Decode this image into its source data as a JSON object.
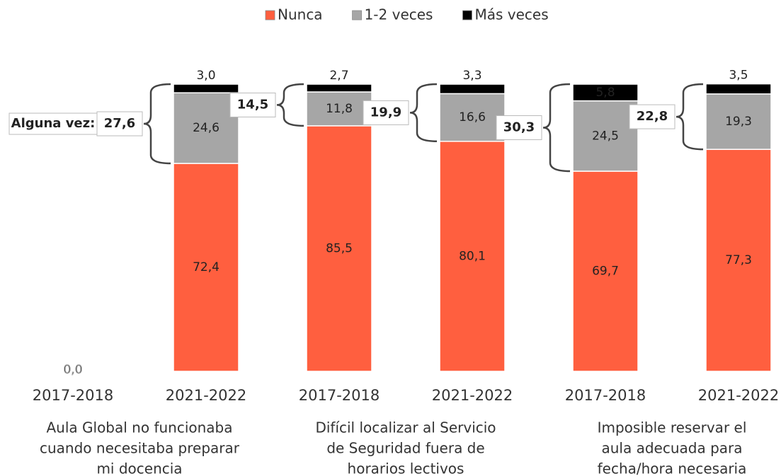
{
  "chart_data": {
    "type": "stacked-bar",
    "categories": [
      "2017-2018",
      "2021-2022",
      "2017-2018",
      "2021-2022",
      "2017-2018",
      "2021-2022"
    ],
    "groups": [
      {
        "label": [
          "Aula Global no funcionaba",
          "cuando necesitaba preparar",
          "mi docencia"
        ]
      },
      {
        "label": [
          "Difícil localizar al Servicio",
          "de Seguridad fuera de",
          "horarios lectivos"
        ]
      },
      {
        "label": [
          "Imposible reservar el",
          "aula adecuada para",
          "fecha/hora necesaria"
        ]
      }
    ],
    "series": [
      {
        "name": "Nunca",
        "color": "#ff5f3f",
        "values": [
          0,
          72.4,
          85.5,
          80.1,
          69.7,
          77.3
        ],
        "value_labels": [
          "0,0",
          "72,4",
          "85,5",
          "80,1",
          "69,7",
          "77,3"
        ]
      },
      {
        "name": "1-2 veces",
        "color": "#a6a6a6",
        "values": [
          null,
          24.6,
          11.8,
          16.6,
          24.5,
          19.3
        ],
        "value_labels": [
          null,
          "24,6",
          "11,8",
          "16,6",
          "24,5",
          "19,3"
        ]
      },
      {
        "name": "Más veces",
        "color": "#000000",
        "values": [
          null,
          3.0,
          2.7,
          3.3,
          5.8,
          3.5
        ],
        "value_labels": [
          null,
          "3,0",
          "2,7",
          "3,3",
          "5,8",
          "3,5"
        ]
      }
    ],
    "alguna_vez": {
      "label": "Alguna vez:",
      "values": [
        null,
        27.6,
        14.5,
        19.9,
        30.3,
        22.8
      ],
      "value_labels": [
        null,
        "27,6",
        "14,5",
        "19,9",
        "30,3",
        "22,8"
      ]
    },
    "ylim": [
      0,
      100
    ]
  }
}
